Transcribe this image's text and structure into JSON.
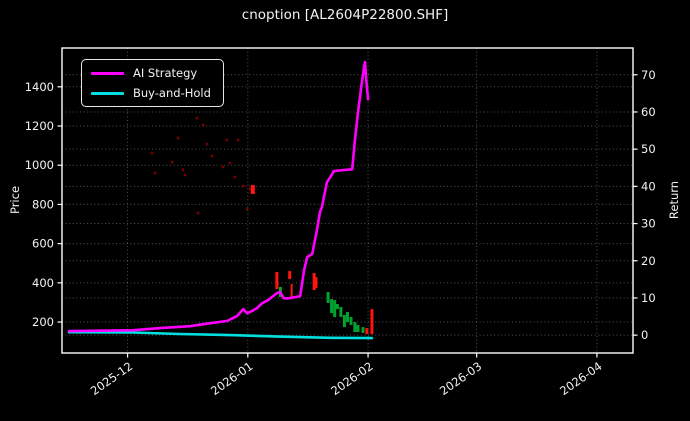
{
  "chart_data": {
    "type": "line+candlestick",
    "title": "cnoption [AL2604P22800.SHF]",
    "background": "#000000",
    "text_color": "#f2f2f2",
    "grid": {
      "on": true,
      "style": "dotted",
      "color": "rgba(255,255,255,0.32)"
    },
    "x_axis": {
      "unit": "days_since_2025-12-01",
      "range": [
        -16.9,
        130.3
      ],
      "ticks": [
        {
          "day": 0,
          "label": "2025-12"
        },
        {
          "day": 31,
          "label": "2026-01"
        },
        {
          "day": 62,
          "label": "2026-02"
        },
        {
          "day": 90,
          "label": "2026-03"
        },
        {
          "day": 121,
          "label": "2026-04"
        }
      ]
    },
    "left_axis": {
      "label": "Price",
      "range": [
        42,
        1598
      ],
      "ticks": [
        200,
        400,
        600,
        800,
        1000,
        1200,
        1400
      ]
    },
    "right_axis": {
      "label": "Return",
      "range": [
        -4.8,
        77.2
      ],
      "ticks": [
        0,
        10,
        20,
        30,
        40,
        50,
        60,
        70
      ]
    },
    "legend_position": "upper-left",
    "series": [
      {
        "name": "AI Strategy",
        "color": "#ff00ff",
        "axis": "right",
        "width": 2.6,
        "points": [
          [
            -15.1,
            1.1
          ],
          [
            -7.1,
            1.2
          ],
          [
            1.2,
            1.3
          ],
          [
            8.4,
            1.9
          ],
          [
            16.1,
            2.4
          ],
          [
            21.3,
            3.2
          ],
          [
            25.6,
            3.8
          ],
          [
            28.2,
            5.1
          ],
          [
            29.8,
            7.0
          ],
          [
            30.8,
            5.9
          ],
          [
            32.1,
            6.5
          ],
          [
            33.4,
            7.3
          ],
          [
            34.7,
            8.6
          ],
          [
            36.2,
            9.4
          ],
          [
            37.5,
            10.5
          ],
          [
            38.5,
            11.3
          ],
          [
            39.3,
            11.6
          ],
          [
            40.3,
            9.9
          ],
          [
            41.4,
            9.9
          ],
          [
            43.2,
            10.2
          ],
          [
            44.5,
            10.5
          ],
          [
            45.5,
            17.5
          ],
          [
            46.3,
            21.0
          ],
          [
            47.6,
            21.8
          ],
          [
            48.8,
            28.2
          ],
          [
            49.6,
            33.1
          ],
          [
            50.1,
            34.4
          ],
          [
            51.4,
            41.1
          ],
          [
            52.4,
            42.7
          ],
          [
            53.2,
            44.1
          ],
          [
            55.8,
            44.4
          ],
          [
            57.9,
            44.6
          ],
          [
            58.6,
            52.4
          ],
          [
            59.4,
            59.9
          ],
          [
            60.2,
            66.4
          ],
          [
            61.0,
            72.3
          ],
          [
            61.2,
            73.4
          ],
          [
            61.5,
            69.1
          ],
          [
            62.0,
            63.4
          ]
        ]
      },
      {
        "name": "Buy-and-Hold",
        "color": "#00e0e0",
        "axis": "right",
        "width": 2.6,
        "points": [
          [
            -15.1,
            0.8
          ],
          [
            1.2,
            0.7
          ],
          [
            13.5,
            0.3
          ],
          [
            26.4,
            0.0
          ],
          [
            39.3,
            -0.4
          ],
          [
            52.2,
            -0.7
          ],
          [
            63.0,
            -0.8
          ]
        ]
      }
    ],
    "candle_colors": {
      "red": "#ff1414",
      "green": "#00a32e"
    },
    "candles": [
      {
        "d": 32.3,
        "hi": 899,
        "lo": 853,
        "color": "red",
        "w": 4
      },
      {
        "d": 38.5,
        "hi": 455,
        "lo": 368,
        "color": "red",
        "w": 3
      },
      {
        "d": 39.4,
        "hi": 379,
        "lo": 328,
        "color": "green",
        "w": 3
      },
      {
        "d": 41.8,
        "hi": 460,
        "lo": 419,
        "color": "red",
        "w": 3
      },
      {
        "d": 42.3,
        "hi": 394,
        "lo": 317,
        "color": "red",
        "w": 2
      },
      {
        "d": 48.1,
        "hi": 450,
        "lo": 363,
        "color": "red",
        "w": 3
      },
      {
        "d": 48.7,
        "hi": 429,
        "lo": 373,
        "color": "red",
        "w": 2
      },
      {
        "d": 51.7,
        "hi": 353,
        "lo": 297,
        "color": "green",
        "w": 3
      },
      {
        "d": 52.6,
        "hi": 317,
        "lo": 246,
        "color": "green",
        "w": 3
      },
      {
        "d": 53.4,
        "hi": 312,
        "lo": 225,
        "color": "green",
        "w": 3
      },
      {
        "d": 54.1,
        "hi": 292,
        "lo": 266,
        "color": "green",
        "w": 3
      },
      {
        "d": 55.0,
        "hi": 277,
        "lo": 226,
        "color": "green",
        "w": 3
      },
      {
        "d": 55.9,
        "hi": 236,
        "lo": 174,
        "color": "green",
        "w": 3
      },
      {
        "d": 56.7,
        "hi": 251,
        "lo": 200,
        "color": "green",
        "w": 3
      },
      {
        "d": 57.6,
        "hi": 226,
        "lo": 185,
        "color": "green",
        "w": 3
      },
      {
        "d": 58.6,
        "hi": 200,
        "lo": 149,
        "color": "green",
        "w": 3
      },
      {
        "d": 59.4,
        "hi": 185,
        "lo": 149,
        "color": "green",
        "w": 3
      },
      {
        "d": 60.7,
        "hi": 174,
        "lo": 144,
        "color": "green",
        "w": 3
      },
      {
        "d": 61.7,
        "hi": 169,
        "lo": 138,
        "color": "red",
        "w": 3
      },
      {
        "d": 63.0,
        "hi": 266,
        "lo": 138,
        "color": "red",
        "w": 3
      }
    ],
    "minor_marks_color": "#d40000",
    "minor_marks": [
      {
        "d": 6.3,
        "p": 1062
      },
      {
        "d": 7.1,
        "p": 960
      },
      {
        "d": 11.5,
        "p": 1016
      },
      {
        "d": 13.0,
        "p": 1139
      },
      {
        "d": 14.3,
        "p": 976
      },
      {
        "d": 14.8,
        "p": 950
      },
      {
        "d": 17.9,
        "p": 1241
      },
      {
        "d": 18.2,
        "p": 756
      },
      {
        "d": 19.5,
        "p": 1205
      },
      {
        "d": 20.5,
        "p": 1108
      },
      {
        "d": 21.8,
        "p": 1047
      },
      {
        "d": 24.6,
        "p": 991
      },
      {
        "d": 25.6,
        "p": 1129
      },
      {
        "d": 26.4,
        "p": 1011
      },
      {
        "d": 27.7,
        "p": 940
      },
      {
        "d": 28.5,
        "p": 1129
      },
      {
        "d": 29.8,
        "p": 894
      },
      {
        "d": 30.8,
        "p": 777
      },
      {
        "d": 31.6,
        "p": 879
      }
    ]
  }
}
